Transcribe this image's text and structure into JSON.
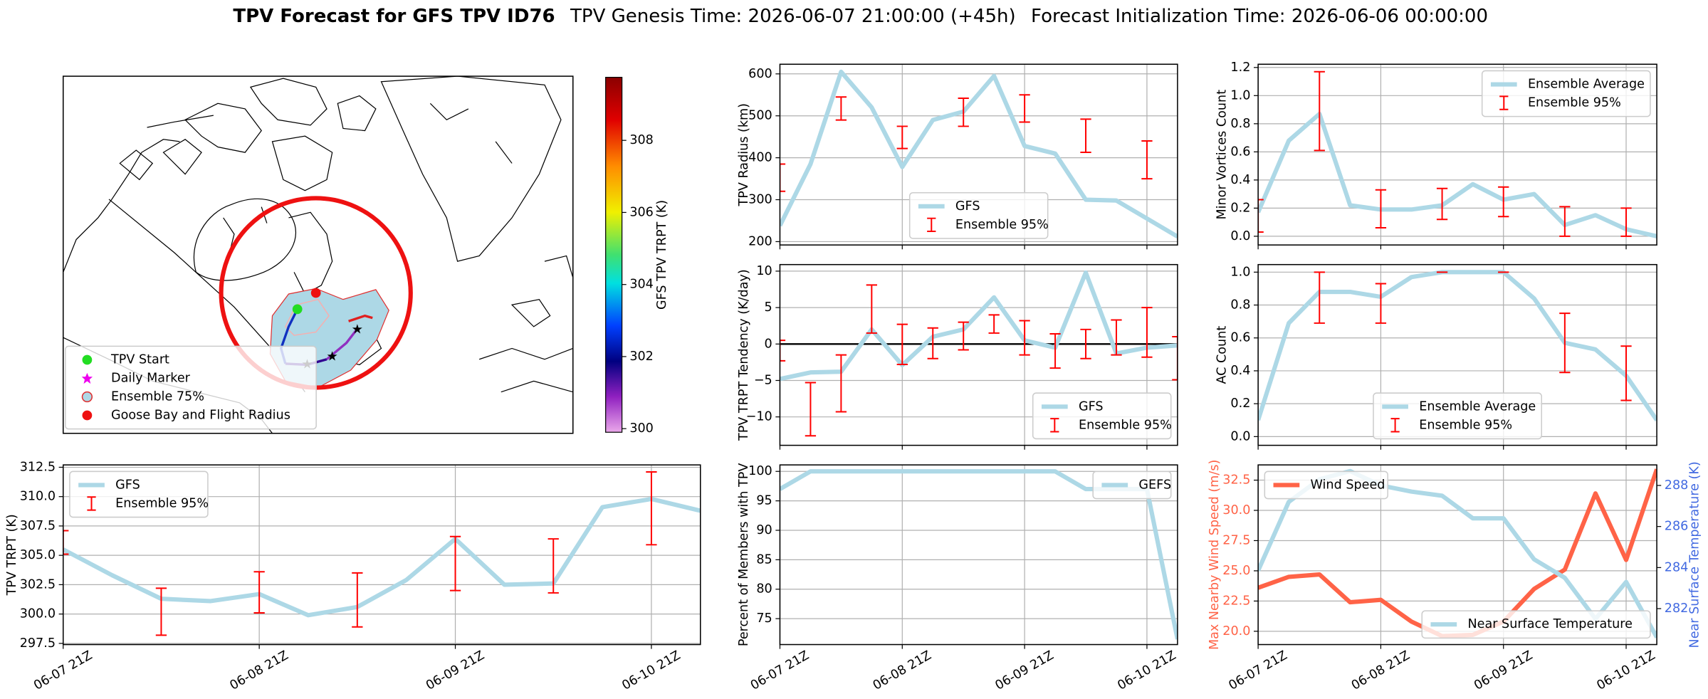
{
  "header": {
    "title": "TPV Forecast for GFS TPV ID76",
    "genesis": "TPV Genesis Time: 2026-06-07 21:00:00 (+45h)",
    "initialization": "Forecast Initialization Time: 2026-06-06 00:00:00"
  },
  "chart_data": [
    {
      "type": "map",
      "legend": {
        "entries": [
          "TPV Start",
          "Daily Marker",
          "Ensemble 75%",
          "Goose Bay and Flight Radius"
        ],
        "corner": "lower left"
      },
      "colorbar": {
        "label": "GFS TPV TRPT (K)",
        "lim": [
          299.9,
          309.75
        ],
        "ticks": [
          300,
          302,
          304,
          306,
          308
        ]
      }
    },
    {
      "type": "line",
      "ylabel": "TPV Radius (km)",
      "ylim": [
        192,
        623
      ],
      "yticks": [
        200,
        300,
        400,
        500,
        600
      ],
      "grid": true,
      "legend": "lower center",
      "series": [
        {
          "name": "GFS",
          "color": "#add8e6",
          "values": [
            238,
            385,
            605,
            520,
            378,
            490,
            510,
            595,
            428,
            410,
            300,
            298,
            255,
            212
          ]
        }
      ],
      "error_bars": {
        "name": "Ensemble 95%",
        "color": "#ff0000",
        "low": [
          320,
          null,
          490,
          null,
          422,
          null,
          475,
          null,
          485,
          null,
          413,
          null,
          350,
          null
        ],
        "high": [
          385,
          null,
          545,
          null,
          475,
          null,
          542,
          null,
          550,
          null,
          492,
          null,
          440,
          null
        ]
      }
    },
    {
      "type": "line",
      "ylabel": "Minor Vortices Count",
      "ylim": [
        -0.062,
        1.223
      ],
      "yticks": [
        {
          "value": 0,
          "label": "0.0"
        },
        0.2,
        0.4,
        0.6,
        0.8,
        {
          "value": 1,
          "label": "1.0"
        },
        1.2
      ],
      "grid": true,
      "legend": "upper right",
      "series": [
        {
          "name": "Ensemble Average",
          "color": "#add8e6",
          "values": [
            0.17,
            0.68,
            0.87,
            0.22,
            0.19,
            0.19,
            0.22,
            0.37,
            0.26,
            0.3,
            0.08,
            0.15,
            0.05,
            0.0
          ]
        }
      ],
      "error_bars": {
        "name": "Ensemble 95%",
        "color": "#ff0000",
        "low": [
          0.03,
          null,
          0.61,
          null,
          0.06,
          null,
          0.12,
          null,
          0.14,
          null,
          0.0,
          null,
          0.0,
          null
        ],
        "high": [
          0.26,
          null,
          1.17,
          null,
          0.33,
          null,
          0.34,
          null,
          0.35,
          null,
          0.21,
          null,
          0.2,
          null
        ]
      }
    },
    {
      "type": "line",
      "ylabel": "TPV TRPT Tendency (K/day)",
      "ylim": [
        -13.9,
        10.9
      ],
      "yticks": [
        {
          "value": -10,
          "label": "−10"
        },
        {
          "value": -5,
          "label": "−5"
        },
        0,
        5,
        10
      ],
      "grid": true,
      "legend": "lower right",
      "reference_line": 0,
      "series": [
        {
          "name": "GFS",
          "color": "#add8e6",
          "values": [
            -4.8,
            -3.9,
            -3.8,
            2.0,
            -2.9,
            1.0,
            2.0,
            6.4,
            0.5,
            -0.5,
            9.8,
            -1.3,
            -0.5,
            -0.2
          ]
        }
      ],
      "error_bars": {
        "name": "Ensemble 95%",
        "color": "#ff0000",
        "low": [
          -2.3,
          -12.6,
          -9.3,
          1.5,
          -2.8,
          -2.0,
          -0.8,
          1.5,
          -1.5,
          -3.3,
          -2.0,
          -1.5,
          -1.8,
          -4.9
        ],
        "high": [
          0.5,
          -5.3,
          -1.5,
          8.1,
          2.7,
          2.2,
          3.0,
          4.0,
          3.2,
          1.4,
          2.0,
          3.3,
          5.0,
          1.0
        ]
      }
    },
    {
      "type": "line",
      "ylabel": "AC Count",
      "ylim": [
        -0.053,
        1.046
      ],
      "yticks": [
        {
          "value": 0,
          "label": "0.0"
        },
        0.2,
        0.4,
        0.6,
        0.8,
        {
          "value": 1,
          "label": "1.0"
        }
      ],
      "grid": true,
      "legend": "lower center",
      "series": [
        {
          "name": "Ensemble Average",
          "color": "#add8e6",
          "values": [
            0.1,
            0.69,
            0.88,
            0.88,
            0.85,
            0.97,
            1.0,
            1.0,
            1.0,
            0.84,
            0.57,
            0.53,
            0.37,
            0.1
          ]
        }
      ],
      "error_bars": {
        "name": "Ensemble 95%",
        "color": "#ff0000",
        "low": [
          null,
          null,
          0.69,
          null,
          0.69,
          null,
          1.0,
          null,
          1.0,
          null,
          0.39,
          null,
          0.22,
          null
        ],
        "high": [
          null,
          null,
          1.0,
          null,
          0.93,
          null,
          1.0,
          null,
          1.0,
          null,
          0.75,
          null,
          0.55,
          null
        ]
      }
    },
    {
      "type": "line",
      "categories": [
        "06-07 21Z",
        null,
        null,
        null,
        "06-08 21Z",
        null,
        null,
        null,
        "06-09 21Z",
        null,
        null,
        null,
        "06-10 21Z",
        null
      ],
      "ylabel": "TPV TRPT (K)",
      "ylim": [
        297.4,
        312.7
      ],
      "yticks": [
        297.5,
        {
          "value": 300,
          "label": "300.0"
        },
        302.5,
        {
          "value": 305,
          "label": "305.0"
        },
        307.5,
        {
          "value": 310,
          "label": "310.0"
        },
        312.5
      ],
      "grid": true,
      "legend": "upper left",
      "series": [
        {
          "name": "GFS",
          "color": "#add8e6",
          "values": [
            305.5,
            303.3,
            301.3,
            301.1,
            301.7,
            299.9,
            300.6,
            302.9,
            306.4,
            302.5,
            302.6,
            309.1,
            309.8,
            308.8
          ]
        }
      ],
      "error_bars": {
        "name": "Ensemble 95%",
        "color": "#ff0000",
        "low": [
          305.1,
          null,
          298.2,
          null,
          300.1,
          null,
          298.9,
          null,
          302.0,
          null,
          301.8,
          null,
          305.9,
          null
        ],
        "high": [
          307.1,
          null,
          302.2,
          null,
          303.6,
          null,
          303.5,
          null,
          306.6,
          null,
          306.4,
          null,
          312.1,
          null
        ]
      }
    },
    {
      "type": "line",
      "categories": [
        "06-07 21Z",
        null,
        null,
        null,
        "06-08 21Z",
        null,
        null,
        null,
        "06-09 21Z",
        null,
        null,
        null,
        "06-10 21Z",
        null
      ],
      "ylabel": "Percent of Members with TPV",
      "ylim": [
        70.6,
        101.1
      ],
      "yticks": [
        75,
        80,
        85,
        90,
        95,
        100
      ],
      "grid": true,
      "legend": "upper right",
      "series": [
        {
          "name": "GEFS",
          "color": "#add8e6",
          "values": [
            97,
            100,
            100,
            100,
            100,
            100,
            100,
            100,
            100,
            100,
            97,
            97,
            97,
            71.5
          ]
        }
      ]
    },
    {
      "type": "line",
      "categories": [
        "06-07 21Z",
        null,
        null,
        null,
        "06-08 21Z",
        null,
        null,
        null,
        "06-09 21Z",
        null,
        null,
        null,
        "06-10 21Z",
        null
      ],
      "ylabel": "Max Nearby Wind Speed (m/s)",
      "ylabel_color": "#ff6347",
      "y2label": "Near Surface Temperature (K)",
      "y2label_color": "#4169e1",
      "ylim": [
        18.9,
        33.76
      ],
      "yticks": [
        {
          "value": 20,
          "label": "20.0"
        },
        22.5,
        {
          "value": 25,
          "label": "25.0"
        },
        27.5,
        {
          "value": 30,
          "label": "30.0"
        },
        32.5
      ],
      "y2lim": [
        280.25,
        289.0
      ],
      "y2ticks": [
        282,
        284,
        286,
        288
      ],
      "grid": true,
      "series": [
        {
          "name": "Wind Speed",
          "color": "#ff6347",
          "legend": "upper left",
          "values": [
            23.6,
            24.5,
            24.7,
            22.4,
            22.6,
            20.8,
            19.6,
            19.7,
            20.8,
            23.5,
            25.1,
            31.4,
            25.9,
            33.4
          ]
        },
        {
          "name": "Near Surface Temperature",
          "color": "#add8e6",
          "axis": "y2",
          "legend": "lower right",
          "values": [
            283.85,
            287.2,
            288.3,
            288.7,
            288.0,
            287.7,
            287.5,
            286.4,
            286.4,
            284.4,
            283.5,
            281.5,
            283.3,
            280.6
          ]
        }
      ]
    }
  ]
}
